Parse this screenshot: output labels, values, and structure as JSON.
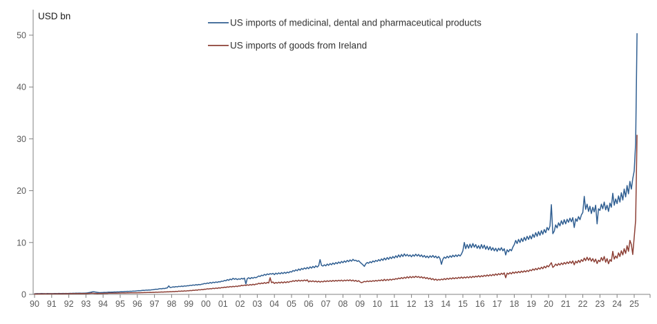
{
  "page": {
    "background": "#ffffff"
  },
  "chart_data": {
    "type": "line",
    "title": "",
    "ylabel": "USD bn",
    "xlabel": "",
    "frequency": "monthly",
    "x_start_label": "90",
    "x_end_label": "25",
    "x_tick_labels": [
      "90",
      "91",
      "92",
      "93",
      "94",
      "95",
      "96",
      "97",
      "98",
      "99",
      "00",
      "01",
      "02",
      "03",
      "04",
      "05",
      "06",
      "07",
      "08",
      "09",
      "10",
      "11",
      "12",
      "13",
      "14",
      "15",
      "16",
      "17",
      "18",
      "19",
      "20",
      "21",
      "22",
      "23",
      "24",
      "25"
    ],
    "ylim": [
      0,
      50
    ],
    "y_ticks": [
      0,
      10,
      20,
      30,
      40,
      50
    ],
    "grid": false,
    "legend_position": "top-center",
    "axis_color": "#808080",
    "tick_label_color": "#595959",
    "text_color": "#1a1a1a",
    "series": [
      {
        "name": "US imports of medicinal, dental and pharmaceutical products",
        "color": "#2f5e91",
        "values": [
          0.12,
          0.13,
          0.15,
          0.13,
          0.14,
          0.16,
          0.14,
          0.15,
          0.13,
          0.16,
          0.15,
          0.14,
          0.15,
          0.14,
          0.16,
          0.17,
          0.15,
          0.18,
          0.16,
          0.17,
          0.19,
          0.16,
          0.18,
          0.17,
          0.18,
          0.2,
          0.19,
          0.21,
          0.2,
          0.22,
          0.21,
          0.23,
          0.22,
          0.21,
          0.24,
          0.22,
          0.25,
          0.28,
          0.33,
          0.38,
          0.45,
          0.5,
          0.48,
          0.42,
          0.38,
          0.35,
          0.33,
          0.34,
          0.36,
          0.38,
          0.37,
          0.4,
          0.42,
          0.41,
          0.44,
          0.43,
          0.46,
          0.45,
          0.48,
          0.47,
          0.5,
          0.52,
          0.51,
          0.55,
          0.54,
          0.58,
          0.57,
          0.6,
          0.59,
          0.62,
          0.61,
          0.65,
          0.68,
          0.72,
          0.7,
          0.75,
          0.78,
          0.76,
          0.82,
          0.8,
          0.85,
          0.83,
          0.88,
          0.9,
          0.95,
          1.0,
          0.97,
          1.05,
          1.1,
          1.06,
          1.15,
          1.12,
          1.2,
          1.25,
          1.63,
          1.3,
          1.35,
          1.45,
          1.4,
          1.5,
          1.44,
          1.55,
          1.5,
          1.6,
          1.52,
          1.63,
          1.58,
          1.68,
          1.65,
          1.75,
          1.7,
          1.82,
          1.76,
          1.88,
          1.8,
          1.92,
          1.85,
          1.95,
          2.0,
          2.1,
          2.05,
          2.2,
          2.1,
          2.3,
          2.15,
          2.35,
          2.25,
          2.4,
          2.3,
          2.45,
          2.4,
          2.55,
          2.5,
          2.7,
          2.6,
          2.85,
          2.7,
          2.95,
          2.8,
          3.1,
          2.9,
          3.05,
          2.85,
          3.0,
          2.9,
          3.1,
          2.95,
          3.15,
          2.0,
          3.05,
          3.2,
          3.0,
          3.25,
          3.1,
          3.3,
          3.2,
          3.35,
          3.55,
          3.45,
          3.7,
          3.6,
          3.85,
          3.7,
          3.95,
          3.8,
          4.0,
          3.9,
          4.05,
          3.8,
          4.1,
          3.9,
          4.15,
          3.95,
          4.2,
          4.0,
          4.25,
          4.05,
          4.3,
          4.15,
          4.4,
          4.3,
          4.6,
          4.45,
          4.75,
          4.55,
          4.9,
          4.65,
          5.0,
          4.8,
          5.1,
          4.9,
          5.2,
          4.95,
          5.3,
          5.05,
          5.4,
          5.15,
          5.5,
          5.25,
          5.55,
          6.7,
          5.6,
          5.45,
          5.7,
          5.5,
          5.85,
          5.6,
          5.95,
          5.7,
          6.05,
          5.8,
          6.15,
          5.9,
          6.25,
          6.0,
          6.35,
          6.1,
          6.45,
          6.2,
          6.55,
          6.3,
          6.65,
          6.4,
          6.75,
          6.5,
          6.6,
          6.35,
          6.5,
          6.2,
          5.95,
          5.7,
          5.4,
          5.9,
          6.15,
          6.0,
          6.3,
          6.1,
          6.45,
          6.25,
          6.55,
          6.35,
          6.7,
          6.45,
          6.85,
          6.55,
          7.0,
          6.65,
          7.1,
          6.75,
          7.2,
          6.9,
          7.3,
          7.0,
          7.45,
          7.1,
          7.6,
          7.2,
          7.7,
          7.3,
          7.8,
          7.4,
          7.7,
          7.35,
          7.6,
          7.25,
          7.65,
          7.35,
          7.75,
          7.4,
          7.7,
          7.3,
          7.6,
          7.2,
          7.5,
          7.1,
          7.4,
          7.05,
          7.45,
          7.15,
          7.5,
          7.1,
          7.4,
          7.0,
          7.3,
          6.9,
          5.8,
          6.8,
          7.2,
          6.95,
          7.35,
          7.05,
          7.45,
          7.15,
          7.55,
          7.25,
          7.6,
          7.3,
          7.65,
          7.4,
          7.75,
          8.4,
          10.0,
          8.8,
          9.6,
          8.9,
          9.7,
          9.0,
          9.8,
          9.1,
          9.6,
          8.9,
          9.4,
          8.8,
          9.6,
          8.9,
          9.5,
          8.7,
          9.3,
          8.6,
          9.2,
          8.5,
          9.0,
          8.4,
          8.9,
          8.3,
          8.9,
          8.5,
          9.0,
          8.4,
          8.8,
          7.6,
          8.6,
          8.2,
          8.7,
          8.4,
          9.1,
          9.6,
          10.4,
          9.8,
          10.6,
          10.0,
          10.8,
          10.2,
          11.0,
          10.4,
          11.2,
          10.6,
          11.3,
          10.7,
          11.6,
          11.0,
          11.9,
          11.2,
          12.1,
          11.4,
          12.3,
          11.6,
          12.5,
          11.9,
          12.9,
          12.4,
          13.2,
          17.3,
          11.7,
          12.2,
          13.4,
          12.8,
          13.8,
          13.2,
          14.2,
          13.5,
          14.4,
          13.6,
          14.5,
          13.9,
          14.7,
          14.0,
          14.8,
          12.9,
          14.6,
          14.1,
          15.0,
          14.4,
          15.3,
          15.8,
          18.9,
          16.4,
          17.4,
          16.0,
          17.0,
          15.6,
          16.8,
          15.9,
          17.2,
          13.6,
          16.5,
          16.2,
          17.4,
          16.5,
          17.8,
          16.3,
          17.2,
          16.0,
          17.6,
          16.8,
          19.5,
          17.2,
          18.4,
          17.5,
          19.0,
          17.8,
          19.6,
          18.2,
          20.3,
          18.8,
          21.0,
          19.4,
          21.8,
          20.3,
          22.3,
          23.8,
          29.2,
          50.3
        ]
      },
      {
        "name": "US imports of goods from Ireland",
        "color": "#8c3f35",
        "values": [
          0.07,
          0.08,
          0.07,
          0.09,
          0.08,
          0.09,
          0.08,
          0.1,
          0.09,
          0.08,
          0.1,
          0.09,
          0.09,
          0.1,
          0.11,
          0.1,
          0.11,
          0.12,
          0.11,
          0.12,
          0.11,
          0.13,
          0.12,
          0.13,
          0.12,
          0.13,
          0.14,
          0.13,
          0.15,
          0.14,
          0.15,
          0.14,
          0.16,
          0.15,
          0.16,
          0.15,
          0.16,
          0.17,
          0.18,
          0.2,
          0.22,
          0.21,
          0.19,
          0.18,
          0.17,
          0.18,
          0.19,
          0.18,
          0.19,
          0.2,
          0.21,
          0.2,
          0.22,
          0.23,
          0.22,
          0.24,
          0.23,
          0.25,
          0.24,
          0.26,
          0.25,
          0.27,
          0.26,
          0.28,
          0.27,
          0.29,
          0.28,
          0.3,
          0.29,
          0.31,
          0.3,
          0.32,
          0.31,
          0.33,
          0.32,
          0.34,
          0.33,
          0.36,
          0.35,
          0.37,
          0.36,
          0.38,
          0.37,
          0.4,
          0.39,
          0.42,
          0.4,
          0.44,
          0.42,
          0.46,
          0.44,
          0.48,
          0.46,
          0.5,
          0.48,
          0.52,
          0.5,
          0.55,
          0.52,
          0.58,
          0.55,
          0.62,
          0.58,
          0.65,
          0.6,
          0.68,
          0.63,
          0.7,
          0.68,
          0.75,
          0.72,
          0.8,
          0.76,
          0.85,
          0.8,
          0.9,
          0.85,
          0.95,
          0.9,
          1.0,
          0.98,
          1.08,
          1.02,
          1.12,
          1.06,
          1.18,
          1.1,
          1.22,
          1.15,
          1.28,
          1.2,
          1.32,
          1.28,
          1.4,
          1.33,
          1.45,
          1.38,
          1.52,
          1.42,
          1.56,
          1.46,
          1.6,
          1.5,
          1.65,
          1.6,
          1.75,
          1.66,
          1.8,
          1.7,
          1.85,
          1.74,
          1.9,
          1.78,
          1.95,
          1.82,
          2.0,
          1.95,
          2.15,
          2.02,
          2.2,
          2.08,
          2.28,
          2.12,
          2.32,
          2.18,
          3.2,
          2.25,
          2.4,
          2.1,
          2.3,
          2.15,
          2.35,
          2.18,
          2.4,
          2.2,
          2.42,
          2.25,
          2.45,
          2.3,
          2.5,
          2.45,
          2.65,
          2.5,
          2.7,
          2.52,
          2.75,
          2.55,
          2.72,
          2.58,
          2.78,
          2.6,
          2.8,
          2.4,
          2.6,
          2.45,
          2.62,
          2.42,
          2.58,
          2.38,
          2.55,
          2.35,
          2.52,
          2.4,
          2.6,
          2.45,
          2.62,
          2.48,
          2.65,
          2.5,
          2.68,
          2.52,
          2.7,
          2.55,
          2.72,
          2.58,
          2.75,
          2.55,
          2.75,
          2.6,
          2.78,
          2.62,
          2.8,
          2.58,
          2.76,
          2.52,
          2.7,
          2.48,
          2.65,
          2.4,
          2.25,
          2.35,
          2.5,
          2.42,
          2.58,
          2.45,
          2.6,
          2.48,
          2.65,
          2.52,
          2.7,
          2.55,
          2.75,
          2.6,
          2.8,
          2.62,
          2.9,
          2.65,
          2.88,
          2.7,
          2.92,
          2.75,
          2.95,
          2.85,
          3.05,
          2.92,
          3.15,
          3.0,
          3.25,
          3.05,
          3.3,
          3.1,
          3.4,
          3.15,
          3.45,
          3.2,
          3.45,
          3.25,
          3.5,
          3.28,
          3.45,
          3.2,
          3.4,
          3.12,
          3.32,
          3.05,
          3.25,
          2.95,
          3.15,
          2.85,
          3.05,
          2.75,
          2.95,
          2.7,
          2.9,
          2.75,
          2.95,
          2.8,
          3.05,
          2.85,
          3.1,
          2.9,
          3.15,
          2.95,
          3.2,
          3.0,
          3.22,
          3.05,
          3.28,
          3.1,
          3.35,
          3.1,
          3.35,
          3.15,
          3.4,
          3.18,
          3.45,
          3.22,
          3.48,
          3.28,
          3.52,
          3.35,
          3.6,
          3.35,
          3.6,
          3.42,
          3.68,
          3.48,
          3.75,
          3.52,
          3.8,
          3.58,
          3.85,
          3.65,
          3.95,
          3.7,
          4.0,
          3.78,
          4.08,
          3.85,
          4.15,
          3.2,
          4.1,
          3.9,
          4.2,
          3.95,
          4.3,
          4.05,
          4.35,
          4.12,
          4.42,
          4.18,
          4.5,
          4.25,
          4.55,
          4.32,
          4.62,
          4.4,
          4.75,
          4.55,
          4.9,
          4.65,
          5.0,
          4.75,
          5.12,
          4.85,
          5.25,
          4.95,
          5.4,
          5.1,
          5.55,
          5.3,
          5.75,
          6.1,
          5.2,
          5.45,
          5.85,
          5.55,
          5.95,
          5.65,
          6.05,
          5.75,
          6.15,
          5.85,
          6.25,
          5.95,
          6.35,
          6.0,
          6.45,
          5.7,
          6.4,
          6.05,
          6.55,
          6.15,
          6.7,
          6.35,
          7.0,
          6.5,
          7.15,
          6.55,
          7.05,
          6.4,
          6.9,
          6.25,
          6.8,
          5.95,
          6.6,
          6.3,
          7.1,
          6.5,
          7.3,
          6.2,
          6.9,
          5.9,
          6.7,
          6.35,
          8.3,
          6.8,
          7.4,
          7.0,
          8.0,
          7.3,
          8.4,
          7.6,
          8.8,
          7.9,
          9.4,
          8.3,
          10.4,
          9.6,
          7.7,
          11.0,
          14.3,
          30.7
        ]
      }
    ]
  }
}
